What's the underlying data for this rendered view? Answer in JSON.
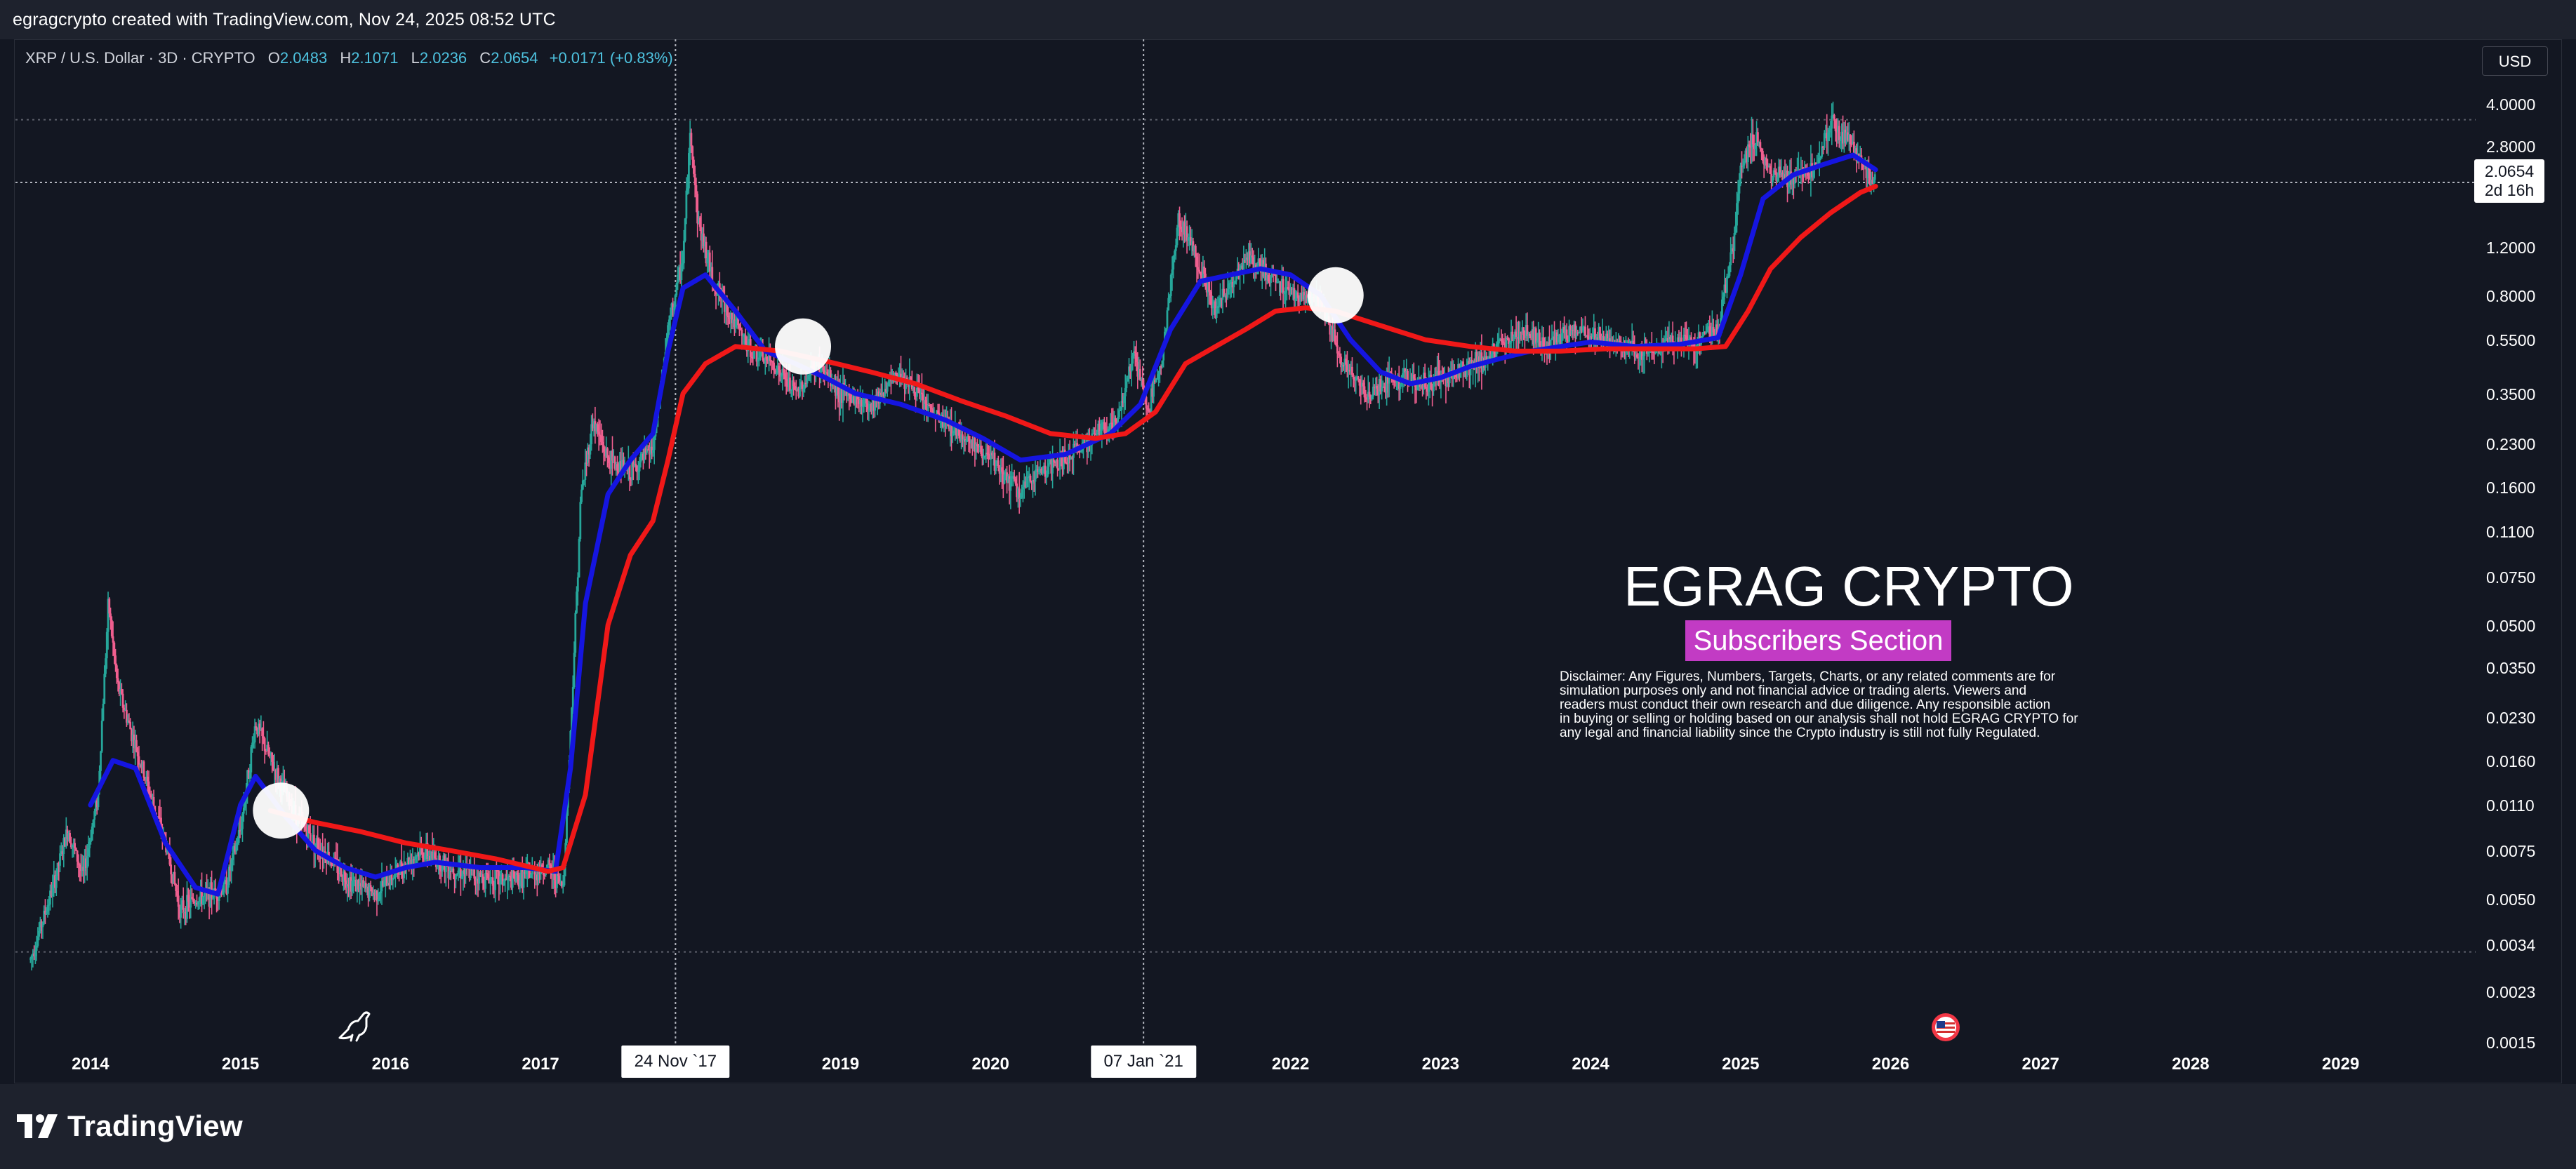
{
  "header": {
    "text": "egragcrypto created with TradingView.com, Nov 24, 2025 08:52 UTC"
  },
  "legend": {
    "symbol": "XRP / U.S. Dollar · 3D · CRYPTO",
    "o_label": "O",
    "o": "2.0483",
    "h_label": "H",
    "h": "2.1071",
    "l_label": "L",
    "l": "2.0236",
    "c_label": "C",
    "c": "2.0654",
    "change": "+0.0171 (+0.83%)"
  },
  "currency_button": "USD",
  "price_tag": {
    "price": "2.0654",
    "countdown": "2d 16h"
  },
  "watermark": {
    "title": "EGRAG CRYPTO",
    "subtitle": "Subscribers Section",
    "disclaimer_lines": [
      "Disclaimer: Any Figures, Numbers, Targets, Charts, or any related comments are for",
      "simulation purposes only and not financial advice or trading alerts. Viewers and",
      "readers must conduct their own research and due diligence. Any responsible action",
      "in buying or selling or holding based on our analysis shall not hold EGRAG CRYPTO for",
      "any legal and financial liability since the Crypto industry is still not fully Regulated."
    ]
  },
  "branding": {
    "logo_text": "TradingView"
  },
  "colors": {
    "background": "#131722",
    "up_candle": "#26a69a",
    "down_candle": "#ef5f8f",
    "ma_fast": "#1515e0",
    "ma_slow": "#f01818",
    "accent_badge": "#c23bc4"
  },
  "chart_data": {
    "type": "line",
    "scale": "log",
    "xlim": [
      2013.5,
      2029.9
    ],
    "ylim": [
      0.0015,
      4.0
    ],
    "y_ticks": [
      {
        "label": "4.0000",
        "v": 4.0
      },
      {
        "label": "2.8000",
        "v": 2.8
      },
      {
        "label": "1.2000",
        "v": 1.2
      },
      {
        "label": "0.8000",
        "v": 0.8
      },
      {
        "label": "0.5500",
        "v": 0.55
      },
      {
        "label": "0.3500",
        "v": 0.35
      },
      {
        "label": "0.2300",
        "v": 0.23
      },
      {
        "label": "0.1600",
        "v": 0.16
      },
      {
        "label": "0.1100",
        "v": 0.11
      },
      {
        "label": "0.0750",
        "v": 0.075
      },
      {
        "label": "0.0500",
        "v": 0.05
      },
      {
        "label": "0.0350",
        "v": 0.035
      },
      {
        "label": "0.0230",
        "v": 0.023
      },
      {
        "label": "0.0160",
        "v": 0.016
      },
      {
        "label": "0.0110",
        "v": 0.011
      },
      {
        "label": "0.0075",
        "v": 0.0075
      },
      {
        "label": "0.0050",
        "v": 0.005
      },
      {
        "label": "0.0034",
        "v": 0.0034
      },
      {
        "label": "0.0023",
        "v": 0.0023
      },
      {
        "label": "0.0015",
        "v": 0.0015
      }
    ],
    "x_ticks": [
      {
        "label": "2014",
        "v": 2014.0
      },
      {
        "label": "2015",
        "v": 2015.0
      },
      {
        "label": "2016",
        "v": 2016.0
      },
      {
        "label": "2017",
        "v": 2017.0
      },
      {
        "label": "2019",
        "v": 2019.0
      },
      {
        "label": "2020",
        "v": 2020.0
      },
      {
        "label": "2022",
        "v": 2022.0
      },
      {
        "label": "2023",
        "v": 2023.0
      },
      {
        "label": "2024",
        "v": 2024.0
      },
      {
        "label": "2025",
        "v": 2025.0
      },
      {
        "label": "2026",
        "v": 2026.0
      },
      {
        "label": "2027",
        "v": 2027.0
      },
      {
        "label": "2028",
        "v": 2028.0
      },
      {
        "label": "2029",
        "v": 2029.0
      }
    ],
    "x_markers": [
      {
        "label": "24 Nov `17",
        "v": 2017.9
      },
      {
        "label": "07 Jan `21",
        "v": 2021.02
      }
    ],
    "current_price": 2.0654,
    "h_dashed_levels": [
      3.5,
      0.0032
    ],
    "series": [
      {
        "role": "price",
        "points": [
          [
            2013.6,
            0.003
          ],
          [
            2013.75,
            0.0055
          ],
          [
            2013.85,
            0.009
          ],
          [
            2013.95,
            0.006
          ],
          [
            2014.05,
            0.012
          ],
          [
            2014.12,
            0.06
          ],
          [
            2014.18,
            0.03
          ],
          [
            2014.3,
            0.018
          ],
          [
            2014.4,
            0.012
          ],
          [
            2014.5,
            0.008
          ],
          [
            2014.6,
            0.0045
          ],
          [
            2014.7,
            0.005
          ],
          [
            2014.8,
            0.0052
          ],
          [
            2014.9,
            0.0055
          ],
          [
            2015.0,
            0.009
          ],
          [
            2015.1,
            0.022
          ],
          [
            2015.2,
            0.016
          ],
          [
            2015.3,
            0.012
          ],
          [
            2015.4,
            0.0095
          ],
          [
            2015.5,
            0.008
          ],
          [
            2015.6,
            0.007
          ],
          [
            2015.7,
            0.006
          ],
          [
            2015.8,
            0.0055
          ],
          [
            2015.9,
            0.0052
          ],
          [
            2016.0,
            0.006
          ],
          [
            2016.2,
            0.0075
          ],
          [
            2016.4,
            0.0065
          ],
          [
            2016.6,
            0.006
          ],
          [
            2016.8,
            0.0058
          ],
          [
            2016.95,
            0.0062
          ],
          [
            2017.05,
            0.0065
          ],
          [
            2017.15,
            0.0055
          ],
          [
            2017.2,
            0.02
          ],
          [
            2017.27,
            0.15
          ],
          [
            2017.35,
            0.28
          ],
          [
            2017.45,
            0.2
          ],
          [
            2017.6,
            0.18
          ],
          [
            2017.75,
            0.22
          ],
          [
            2017.85,
            0.6
          ],
          [
            2017.95,
            1.1
          ],
          [
            2018.0,
            3.2
          ],
          [
            2018.05,
            1.5
          ],
          [
            2018.15,
            0.9
          ],
          [
            2018.25,
            0.7
          ],
          [
            2018.4,
            0.5
          ],
          [
            2018.55,
            0.45
          ],
          [
            2018.7,
            0.35
          ],
          [
            2018.85,
            0.45
          ],
          [
            2019.0,
            0.35
          ],
          [
            2019.2,
            0.32
          ],
          [
            2019.4,
            0.42
          ],
          [
            2019.6,
            0.3
          ],
          [
            2019.8,
            0.25
          ],
          [
            2020.0,
            0.2
          ],
          [
            2020.2,
            0.15
          ],
          [
            2020.3,
            0.18
          ],
          [
            2020.5,
            0.2
          ],
          [
            2020.7,
            0.25
          ],
          [
            2020.85,
            0.28
          ],
          [
            2020.95,
            0.5
          ],
          [
            2021.05,
            0.3
          ],
          [
            2021.15,
            0.5
          ],
          [
            2021.25,
            1.5
          ],
          [
            2021.35,
            1.2
          ],
          [
            2021.5,
            0.7
          ],
          [
            2021.7,
            1.1
          ],
          [
            2021.9,
            0.9
          ],
          [
            2022.05,
            0.8
          ],
          [
            2022.2,
            0.75
          ],
          [
            2022.35,
            0.45
          ],
          [
            2022.5,
            0.35
          ],
          [
            2022.7,
            0.4
          ],
          [
            2022.9,
            0.38
          ],
          [
            2023.1,
            0.42
          ],
          [
            2023.3,
            0.47
          ],
          [
            2023.55,
            0.6
          ],
          [
            2023.7,
            0.52
          ],
          [
            2023.9,
            0.6
          ],
          [
            2024.1,
            0.55
          ],
          [
            2024.3,
            0.5
          ],
          [
            2024.5,
            0.52
          ],
          [
            2024.7,
            0.55
          ],
          [
            2024.85,
            0.6
          ],
          [
            2024.95,
            1.2
          ],
          [
            2025.0,
            2.4
          ],
          [
            2025.1,
            3.0
          ],
          [
            2025.2,
            2.2
          ],
          [
            2025.35,
            2.1
          ],
          [
            2025.5,
            2.4
          ],
          [
            2025.6,
            3.5
          ],
          [
            2025.75,
            2.8
          ],
          [
            2025.85,
            2.2
          ],
          [
            2025.9,
            2.0654
          ]
        ]
      },
      {
        "role": "fast_ma",
        "points": [
          [
            2014.0,
            0.011
          ],
          [
            2014.15,
            0.016
          ],
          [
            2014.3,
            0.015
          ],
          [
            2014.5,
            0.008
          ],
          [
            2014.7,
            0.0055
          ],
          [
            2014.85,
            0.0052
          ],
          [
            2015.0,
            0.011
          ],
          [
            2015.1,
            0.014
          ],
          [
            2015.3,
            0.01
          ],
          [
            2015.5,
            0.0075
          ],
          [
            2015.7,
            0.0065
          ],
          [
            2015.9,
            0.006
          ],
          [
            2016.1,
            0.0065
          ],
          [
            2016.3,
            0.0068
          ],
          [
            2016.6,
            0.0065
          ],
          [
            2016.9,
            0.0065
          ],
          [
            2017.1,
            0.0063
          ],
          [
            2017.2,
            0.015
          ],
          [
            2017.3,
            0.06
          ],
          [
            2017.45,
            0.15
          ],
          [
            2017.6,
            0.2
          ],
          [
            2017.75,
            0.25
          ],
          [
            2017.85,
            0.5
          ],
          [
            2017.95,
            0.85
          ],
          [
            2018.1,
            0.95
          ],
          [
            2018.3,
            0.7
          ],
          [
            2018.5,
            0.5
          ],
          [
            2018.7,
            0.45
          ],
          [
            2018.9,
            0.4
          ],
          [
            2019.1,
            0.35
          ],
          [
            2019.4,
            0.32
          ],
          [
            2019.7,
            0.28
          ],
          [
            2019.95,
            0.24
          ],
          [
            2020.2,
            0.2
          ],
          [
            2020.5,
            0.21
          ],
          [
            2020.8,
            0.25
          ],
          [
            2021.0,
            0.32
          ],
          [
            2021.2,
            0.6
          ],
          [
            2021.4,
            0.9
          ],
          [
            2021.6,
            0.95
          ],
          [
            2021.8,
            1.0
          ],
          [
            2022.0,
            0.95
          ],
          [
            2022.2,
            0.8
          ],
          [
            2022.4,
            0.55
          ],
          [
            2022.6,
            0.42
          ],
          [
            2022.8,
            0.38
          ],
          [
            2023.0,
            0.4
          ],
          [
            2023.2,
            0.44
          ],
          [
            2023.4,
            0.47
          ],
          [
            2023.6,
            0.5
          ],
          [
            2023.8,
            0.52
          ],
          [
            2024.0,
            0.54
          ],
          [
            2024.3,
            0.52
          ],
          [
            2024.6,
            0.53
          ],
          [
            2024.85,
            0.56
          ],
          [
            2025.0,
            0.95
          ],
          [
            2025.15,
            1.8
          ],
          [
            2025.35,
            2.2
          ],
          [
            2025.55,
            2.4
          ],
          [
            2025.75,
            2.6
          ],
          [
            2025.9,
            2.3
          ]
        ]
      },
      {
        "role": "slow_ma",
        "points": [
          [
            2015.2,
            0.0105
          ],
          [
            2015.5,
            0.0095
          ],
          [
            2015.8,
            0.0088
          ],
          [
            2016.1,
            0.008
          ],
          [
            2016.4,
            0.0075
          ],
          [
            2016.7,
            0.007
          ],
          [
            2016.95,
            0.0065
          ],
          [
            2017.05,
            0.0063
          ],
          [
            2017.15,
            0.0065
          ],
          [
            2017.3,
            0.012
          ],
          [
            2017.45,
            0.05
          ],
          [
            2017.6,
            0.09
          ],
          [
            2017.75,
            0.12
          ],
          [
            2017.85,
            0.2
          ],
          [
            2017.95,
            0.35
          ],
          [
            2018.1,
            0.45
          ],
          [
            2018.3,
            0.52
          ],
          [
            2018.6,
            0.5
          ],
          [
            2018.9,
            0.46
          ],
          [
            2019.2,
            0.42
          ],
          [
            2019.5,
            0.38
          ],
          [
            2019.8,
            0.33
          ],
          [
            2020.1,
            0.29
          ],
          [
            2020.4,
            0.25
          ],
          [
            2020.7,
            0.24
          ],
          [
            2020.9,
            0.25
          ],
          [
            2021.1,
            0.3
          ],
          [
            2021.3,
            0.45
          ],
          [
            2021.5,
            0.52
          ],
          [
            2021.7,
            0.6
          ],
          [
            2021.9,
            0.7
          ],
          [
            2022.1,
            0.72
          ],
          [
            2022.3,
            0.7
          ],
          [
            2022.6,
            0.62
          ],
          [
            2022.9,
            0.55
          ],
          [
            2023.2,
            0.52
          ],
          [
            2023.5,
            0.5
          ],
          [
            2023.8,
            0.5
          ],
          [
            2024.1,
            0.51
          ],
          [
            2024.4,
            0.51
          ],
          [
            2024.7,
            0.51
          ],
          [
            2024.9,
            0.52
          ],
          [
            2025.05,
            0.7
          ],
          [
            2025.2,
            1.0
          ],
          [
            2025.4,
            1.3
          ],
          [
            2025.6,
            1.6
          ],
          [
            2025.8,
            1.9
          ],
          [
            2025.9,
            2.0
          ]
        ]
      }
    ],
    "highlight_circles": [
      {
        "x": 2015.27,
        "y": 0.0105
      },
      {
        "x": 2018.75,
        "y": 0.52
      },
      {
        "x": 2022.3,
        "y": 0.8
      }
    ]
  }
}
